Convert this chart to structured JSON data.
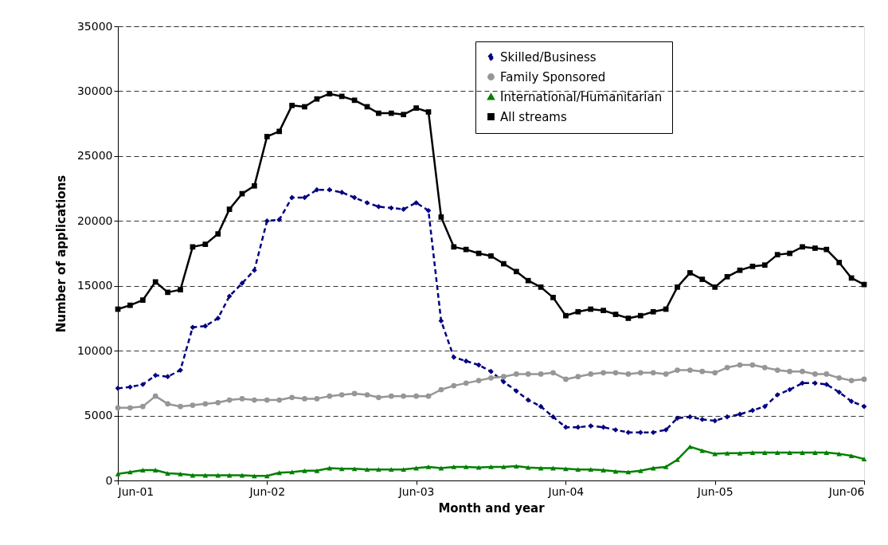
{
  "chart_data": {
    "type": "line",
    "xlabel": "Month and year",
    "ylabel": "Number of applications",
    "x": [
      "2001-06",
      "2001-07",
      "2001-08",
      "2001-09",
      "2001-10",
      "2001-11",
      "2001-12",
      "2002-01",
      "2002-02",
      "2002-03",
      "2002-04",
      "2002-05",
      "2002-06",
      "2002-07",
      "2002-08",
      "2002-09",
      "2002-10",
      "2002-11",
      "2002-12",
      "2003-01",
      "2003-02",
      "2003-03",
      "2003-04",
      "2003-05",
      "2003-06",
      "2003-07",
      "2003-08",
      "2003-09",
      "2003-10",
      "2003-11",
      "2003-12",
      "2004-01",
      "2004-02",
      "2004-03",
      "2004-04",
      "2004-05",
      "2004-06",
      "2004-07",
      "2004-08",
      "2004-09",
      "2004-10",
      "2004-11",
      "2004-12",
      "2005-01",
      "2005-02",
      "2005-03",
      "2005-04",
      "2005-05",
      "2005-06",
      "2005-07",
      "2005-08",
      "2005-09",
      "2005-10",
      "2005-11",
      "2005-12",
      "2006-01",
      "2006-02",
      "2006-03",
      "2006-04",
      "2006-05",
      "2006-06"
    ],
    "series": [
      {
        "name": "Skilled/Business",
        "color": "#000080",
        "marker": "diamond",
        "line_style": "dashed",
        "values": [
          7100,
          7200,
          7400,
          8100,
          8000,
          8500,
          11800,
          11900,
          12500,
          14200,
          15200,
          16200,
          20000,
          20100,
          21800,
          21800,
          22400,
          22400,
          22200,
          21800,
          21400,
          21100,
          21000,
          20900,
          21400,
          20800,
          12300,
          9500,
          9200,
          8900,
          8400,
          7600,
          6900,
          6200,
          5700,
          4900,
          4100,
          4100,
          4200,
          4100,
          3900,
          3700,
          3700,
          3700,
          3900,
          4800,
          4900,
          4700,
          4600,
          4900,
          5100,
          5400,
          5700,
          6600,
          7000,
          7500,
          7500,
          7400,
          6800,
          6100,
          5700
        ]
      },
      {
        "name": "Family Sponsored",
        "color": "#969696",
        "marker": "circle",
        "line_style": "solid",
        "values": [
          5600,
          5600,
          5700,
          6500,
          5900,
          5700,
          5800,
          5900,
          6000,
          6200,
          6300,
          6200,
          6200,
          6200,
          6400,
          6300,
          6300,
          6500,
          6600,
          6700,
          6600,
          6400,
          6500,
          6500,
          6500,
          6500,
          7000,
          7300,
          7500,
          7700,
          7900,
          8000,
          8200,
          8200,
          8200,
          8300,
          7800,
          8000,
          8200,
          8300,
          8300,
          8200,
          8300,
          8300,
          8200,
          8500,
          8500,
          8400,
          8300,
          8700,
          8900,
          8900,
          8700,
          8500,
          8400,
          8400,
          8200,
          8200,
          7900,
          7700,
          7800
        ]
      },
      {
        "name": "International/Humanitarian",
        "color": "#008000",
        "marker": "triangle",
        "line_style": "solid",
        "values": [
          500,
          650,
          800,
          800,
          550,
          500,
          400,
          400,
          400,
          400,
          400,
          350,
          350,
          600,
          650,
          750,
          750,
          950,
          900,
          900,
          850,
          850,
          850,
          850,
          950,
          1050,
          950,
          1050,
          1050,
          1000,
          1050,
          1050,
          1100,
          1000,
          950,
          950,
          900,
          850,
          850,
          800,
          700,
          650,
          750,
          950,
          1050,
          1600,
          2600,
          2300,
          2050,
          2100,
          2100,
          2150,
          2150,
          2150,
          2150,
          2150,
          2150,
          2150,
          2050,
          1900,
          1650
        ]
      },
      {
        "name": "All streams",
        "color": "#000000",
        "marker": "square",
        "line_style": "solid",
        "values": [
          13200,
          13500,
          13900,
          15300,
          14500,
          14700,
          18000,
          18200,
          19000,
          20900,
          22100,
          22700,
          26500,
          26900,
          28900,
          28800,
          29400,
          29800,
          29600,
          29300,
          28800,
          28300,
          28300,
          28200,
          28700,
          28400,
          20300,
          18000,
          17800,
          17500,
          17300,
          16700,
          16100,
          15400,
          14900,
          14100,
          12700,
          13000,
          13200,
          13100,
          12800,
          12500,
          12700,
          13000,
          13200,
          14900,
          16000,
          15500,
          14900,
          15700,
          16200,
          16500,
          16600,
          17400,
          17500,
          18000,
          17900,
          17800,
          16800,
          15600,
          15100
        ]
      }
    ],
    "xlim": [
      "2001-06",
      "2006-06"
    ],
    "xticks": [
      {
        "value": "2001-06",
        "label": "Jun-01"
      },
      {
        "value": "2002-06",
        "label": "Jun-02"
      },
      {
        "value": "2003-06",
        "label": "Jun-03"
      },
      {
        "value": "2004-06",
        "label": "Jun-04"
      },
      {
        "value": "2005-06",
        "label": "Jun-05"
      },
      {
        "value": "2006-06",
        "label": "Jun-06"
      }
    ],
    "ylim": [
      0,
      35000
    ],
    "yticks": [
      0,
      5000,
      10000,
      15000,
      20000,
      25000,
      30000,
      35000
    ],
    "grid": "y",
    "legend": "top right"
  }
}
